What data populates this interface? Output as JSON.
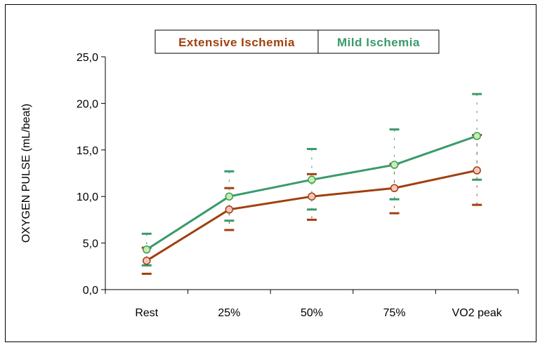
{
  "chart_data": {
    "type": "line",
    "categories": [
      "Rest",
      "25%",
      "50%",
      "75%",
      "VO2 peak"
    ],
    "ylabel": "OXYGEN PULSE (mL/beat)",
    "ylim": [
      0,
      25
    ],
    "yticks": [
      "0,0",
      "5,0",
      "10,0",
      "15,0",
      "20,0",
      "25,0"
    ],
    "grid": false,
    "legend_position": "top-center",
    "series": [
      {
        "name": "Extensive Ischemia",
        "color": "#a0400e",
        "marker_fill": "#f5c6c0",
        "values": [
          3.1,
          8.6,
          10.0,
          10.9,
          12.8
        ],
        "error_low": [
          1.7,
          6.4,
          7.5,
          8.2,
          9.1
        ],
        "error_high": [
          4.5,
          10.9,
          12.4,
          13.5,
          16.6
        ]
      },
      {
        "name": "Mild Ischemia",
        "color": "#3a9a6a",
        "marker_fill": "#c8f0a0",
        "values": [
          4.3,
          10.0,
          11.8,
          13.4,
          16.5
        ],
        "error_low": [
          2.6,
          7.4,
          8.6,
          9.7,
          11.8
        ],
        "error_high": [
          6.0,
          12.7,
          15.1,
          17.2,
          21.0
        ]
      }
    ]
  }
}
